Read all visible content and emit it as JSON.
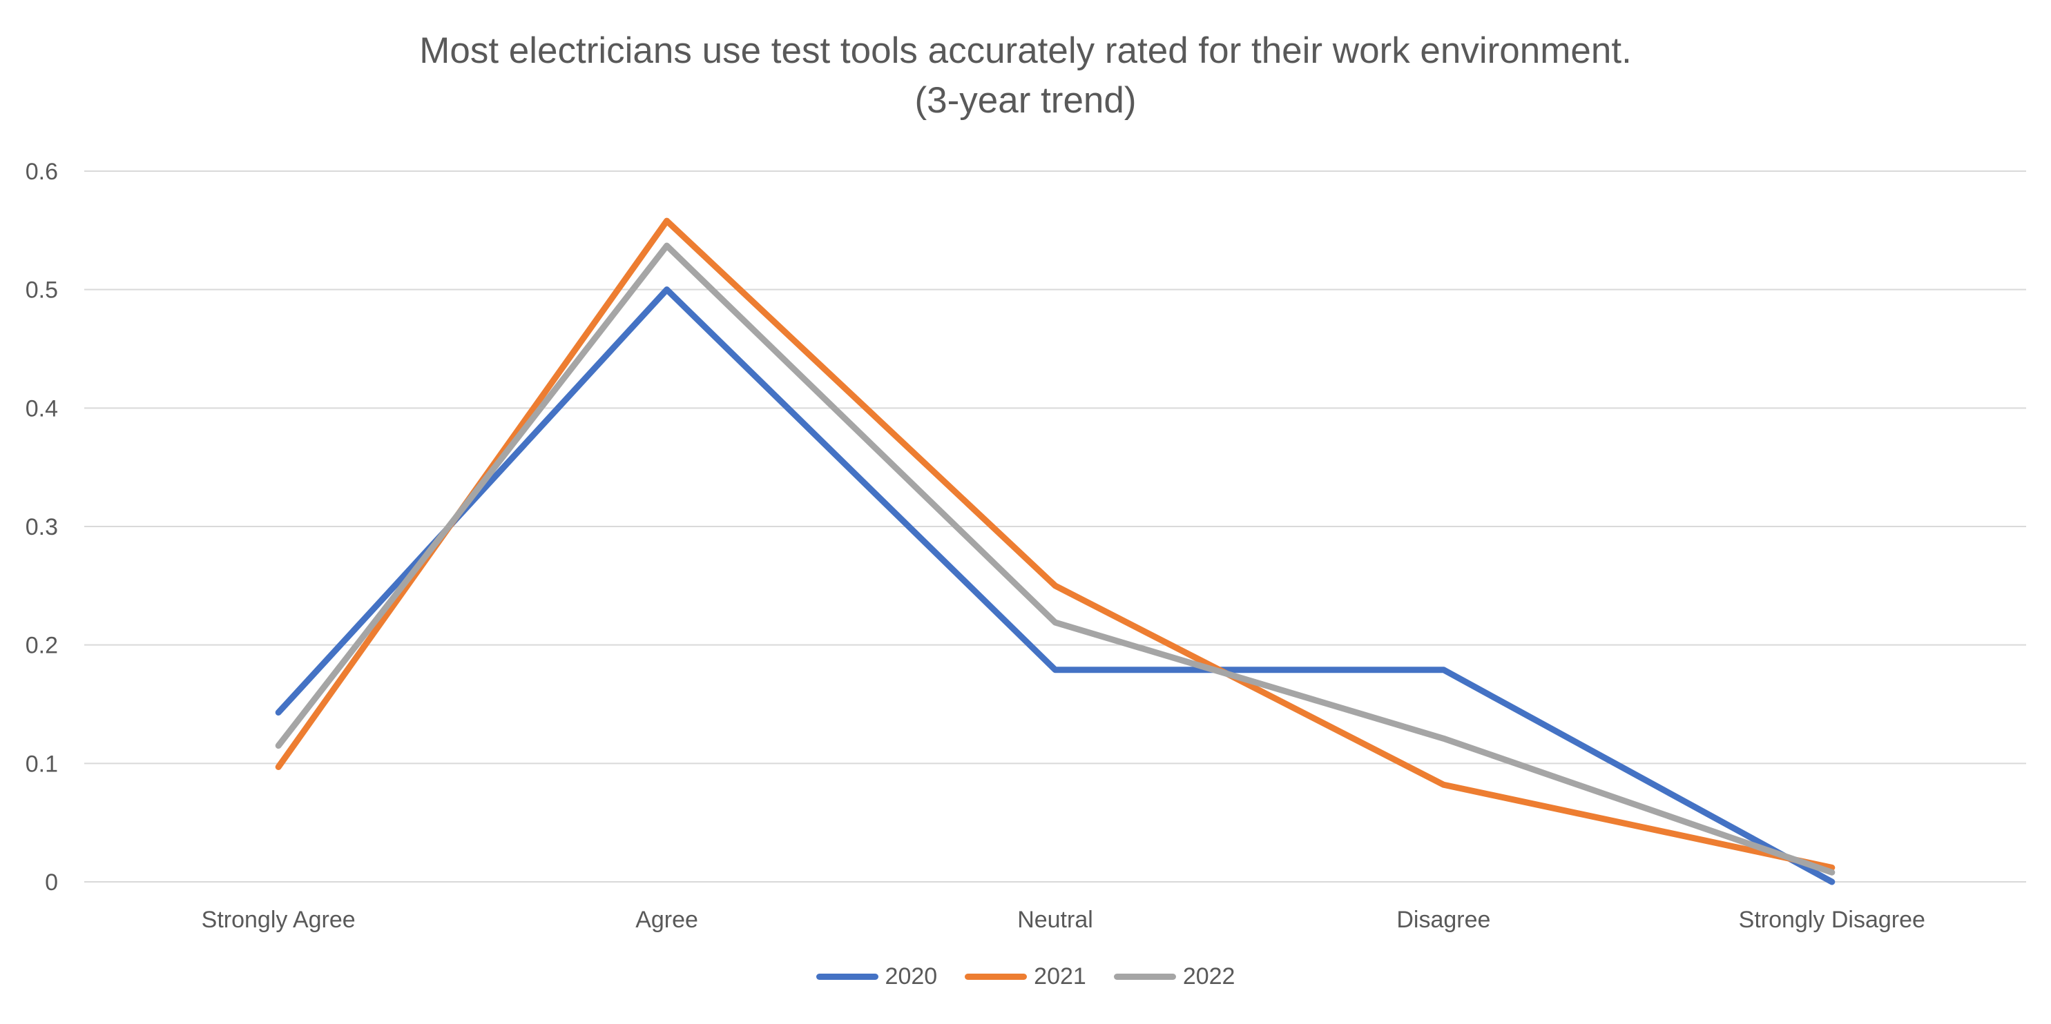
{
  "chart_data": {
    "type": "line",
    "title": "Most electricians use test tools accurately rated for their work environment.",
    "subtitle": "(3-year trend)",
    "xlabel": "",
    "ylabel": "",
    "categories": [
      "Strongly Agree",
      "Agree",
      "Neutral",
      "Disagree",
      "Strongly Disagree"
    ],
    "ylim": [
      0,
      0.6
    ],
    "yticks": [
      "0",
      "0.1",
      "0.2",
      "0.3",
      "0.4",
      "0.5",
      "0.6"
    ],
    "grid": true,
    "legend_position": "bottom",
    "series": [
      {
        "name": "2020",
        "color": "#4472C4",
        "values": [
          0.143,
          0.5,
          0.179,
          0.179,
          0.0
        ]
      },
      {
        "name": "2021",
        "color": "#ED7D31",
        "values": [
          0.097,
          0.558,
          0.25,
          0.082,
          0.012
        ]
      },
      {
        "name": "2022",
        "color": "#A5A5A5",
        "values": [
          0.115,
          0.537,
          0.219,
          0.121,
          0.008
        ]
      }
    ]
  }
}
